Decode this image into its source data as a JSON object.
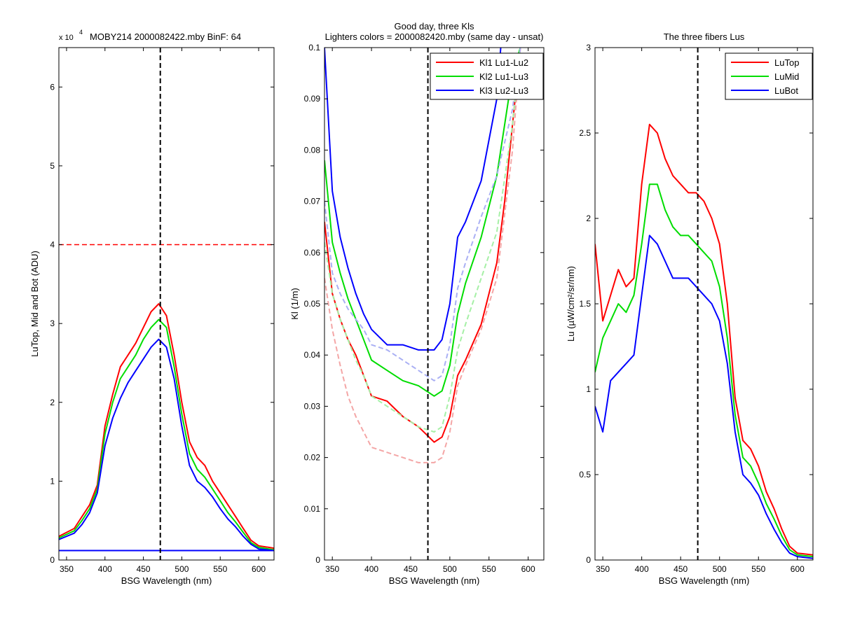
{
  "figure": {
    "background": "#ffffff"
  },
  "chart_data": [
    {
      "type": "line",
      "title": "MOBY214  2000082422.mby BinF: 64",
      "y_exponent_label": "x 10",
      "y_exponent_power": "4",
      "xlabel": "BSG Wavelength (nm)",
      "ylabel": "LuTop, Mid and Bot (ADU)",
      "xlim": [
        340,
        620
      ],
      "ylim": [
        0,
        6.5
      ],
      "xticks": [
        350,
        400,
        450,
        500,
        550,
        600
      ],
      "yticks": [
        0,
        1,
        2,
        3,
        4,
        5,
        6
      ],
      "xtick_labels": [
        "350",
        "400",
        "450",
        "500",
        "550",
        "600"
      ],
      "ytick_labels": [
        "0",
        "1",
        "2",
        "3",
        "4",
        "5",
        "6"
      ],
      "vline": {
        "x": 472,
        "color": "#000000",
        "style": "dashed"
      },
      "hline": {
        "y": 4.0,
        "color": "#ff0000",
        "style": "dashed"
      },
      "series": [
        {
          "color": "#ff0000",
          "x": [
            340,
            360,
            370,
            380,
            390,
            400,
            410,
            420,
            430,
            440,
            450,
            460,
            470,
            480,
            490,
            500,
            510,
            520,
            530,
            540,
            550,
            560,
            570,
            580,
            590,
            600,
            620
          ],
          "y": [
            0.3,
            0.4,
            0.55,
            0.7,
            0.95,
            1.7,
            2.1,
            2.45,
            2.6,
            2.75,
            2.95,
            3.15,
            3.25,
            3.1,
            2.6,
            2.0,
            1.5,
            1.3,
            1.2,
            1.0,
            0.85,
            0.7,
            0.55,
            0.4,
            0.25,
            0.18,
            0.15
          ]
        },
        {
          "color": "#00dd00",
          "x": [
            340,
            360,
            370,
            380,
            390,
            400,
            410,
            420,
            430,
            440,
            450,
            460,
            470,
            480,
            490,
            500,
            510,
            520,
            530,
            540,
            550,
            560,
            570,
            580,
            590,
            600,
            620
          ],
          "y": [
            0.28,
            0.37,
            0.5,
            0.65,
            0.9,
            1.6,
            2.0,
            2.3,
            2.45,
            2.6,
            2.8,
            2.95,
            3.05,
            2.95,
            2.45,
            1.85,
            1.35,
            1.15,
            1.05,
            0.9,
            0.75,
            0.6,
            0.48,
            0.35,
            0.22,
            0.16,
            0.13
          ]
        },
        {
          "color": "#0000ff",
          "x": [
            340,
            360,
            370,
            380,
            390,
            400,
            410,
            420,
            430,
            440,
            450,
            460,
            470,
            480,
            490,
            500,
            510,
            520,
            530,
            540,
            550,
            560,
            570,
            580,
            590,
            600,
            620
          ],
          "y": [
            0.26,
            0.34,
            0.45,
            0.6,
            0.85,
            1.45,
            1.8,
            2.05,
            2.25,
            2.4,
            2.55,
            2.7,
            2.8,
            2.7,
            2.3,
            1.7,
            1.2,
            1.0,
            0.92,
            0.8,
            0.65,
            0.52,
            0.42,
            0.3,
            0.2,
            0.14,
            0.12
          ]
        },
        {
          "color": "#0000ff",
          "x": [
            340,
            620
          ],
          "y": [
            0.12,
            0.12
          ]
        }
      ]
    },
    {
      "type": "line",
      "title": "Good day, three Kls",
      "subtitle": "Lighters colors = 2000082420.mby (same day - unsat)",
      "xlabel": "BSG Wavelength (nm)",
      "ylabel": "Kl (1/m)",
      "xlim": [
        340,
        620
      ],
      "ylim": [
        0,
        0.1
      ],
      "xticks": [
        350,
        400,
        450,
        500,
        550,
        600
      ],
      "yticks": [
        0,
        0.01,
        0.02,
        0.03,
        0.04,
        0.05,
        0.06,
        0.07,
        0.08,
        0.09,
        0.1
      ],
      "xtick_labels": [
        "350",
        "400",
        "450",
        "500",
        "550",
        "600"
      ],
      "ytick_labels": [
        "0",
        "0.01",
        "0.02",
        "0.03",
        "0.04",
        "0.05",
        "0.06",
        "0.07",
        "0.08",
        "0.09",
        "0.1"
      ],
      "vline": {
        "x": 472,
        "color": "#000000",
        "style": "dashed"
      },
      "legend_position": "top-right",
      "series": [
        {
          "name": "Kl1 Lu1-Lu2",
          "color": "#ff0000",
          "x": [
            340,
            350,
            360,
            370,
            380,
            390,
            400,
            420,
            440,
            460,
            480,
            490,
            500,
            510,
            520,
            540,
            560,
            570,
            580,
            590
          ],
          "y": [
            0.066,
            0.052,
            0.047,
            0.043,
            0.04,
            0.036,
            0.032,
            0.031,
            0.028,
            0.026,
            0.023,
            0.024,
            0.028,
            0.036,
            0.039,
            0.046,
            0.058,
            0.07,
            0.085,
            0.1
          ]
        },
        {
          "name": "Kl2 Lu1-Lu3",
          "color": "#00dd00",
          "x": [
            340,
            350,
            360,
            370,
            380,
            390,
            400,
            420,
            440,
            460,
            480,
            490,
            500,
            510,
            520,
            540,
            560,
            570,
            580,
            590
          ],
          "y": [
            0.078,
            0.062,
            0.056,
            0.051,
            0.047,
            0.043,
            0.039,
            0.037,
            0.035,
            0.034,
            0.032,
            0.033,
            0.038,
            0.048,
            0.054,
            0.063,
            0.075,
            0.085,
            0.095,
            0.1
          ]
        },
        {
          "name": "Kl3 Lu2-Lu3",
          "color": "#0000ff",
          "x": [
            340,
            350,
            360,
            370,
            380,
            390,
            400,
            420,
            440,
            460,
            480,
            490,
            500,
            510,
            520,
            540,
            560,
            565
          ],
          "y": [
            0.1,
            0.072,
            0.063,
            0.057,
            0.052,
            0.048,
            0.045,
            0.042,
            0.042,
            0.041,
            0.041,
            0.043,
            0.05,
            0.063,
            0.066,
            0.074,
            0.09,
            0.1
          ]
        },
        {
          "color": "#f4a6a6",
          "style": "dashed",
          "x": [
            340,
            350,
            360,
            370,
            380,
            390,
            400,
            420,
            440,
            460,
            480,
            490,
            500,
            510,
            520,
            540,
            560,
            580,
            590
          ],
          "y": [
            0.055,
            0.045,
            0.038,
            0.032,
            0.028,
            0.025,
            0.022,
            0.021,
            0.02,
            0.019,
            0.019,
            0.02,
            0.025,
            0.034,
            0.038,
            0.045,
            0.055,
            0.08,
            0.1
          ]
        },
        {
          "color": "#a6f0a6",
          "style": "dashed",
          "x": [
            340,
            350,
            360,
            370,
            380,
            390,
            400,
            420,
            440,
            460,
            480,
            490,
            500,
            510,
            520,
            540,
            560,
            580,
            590
          ],
          "y": [
            0.062,
            0.052,
            0.047,
            0.043,
            0.039,
            0.036,
            0.032,
            0.03,
            0.028,
            0.026,
            0.025,
            0.026,
            0.032,
            0.041,
            0.046,
            0.055,
            0.064,
            0.085,
            0.1
          ]
        },
        {
          "color": "#aab0f4",
          "style": "dashed",
          "x": [
            340,
            350,
            360,
            370,
            380,
            390,
            400,
            420,
            440,
            460,
            480,
            490,
            500,
            510,
            520,
            540,
            560,
            580,
            590
          ],
          "y": [
            0.07,
            0.056,
            0.052,
            0.049,
            0.047,
            0.045,
            0.042,
            0.041,
            0.039,
            0.037,
            0.035,
            0.036,
            0.042,
            0.053,
            0.058,
            0.067,
            0.075,
            0.088,
            0.1
          ]
        }
      ]
    },
    {
      "type": "line",
      "title": "The three fibers Lus",
      "xlabel": "BSG Wavelength (nm)",
      "ylabel": "Lu (µW/cm²/sr/nm)",
      "xlim": [
        340,
        620
      ],
      "ylim": [
        0,
        3
      ],
      "xticks": [
        350,
        400,
        450,
        500,
        550,
        600
      ],
      "yticks": [
        0,
        0.5,
        1,
        1.5,
        2,
        2.5,
        3
      ],
      "xtick_labels": [
        "350",
        "400",
        "450",
        "500",
        "550",
        "600"
      ],
      "ytick_labels": [
        "0",
        "0.5",
        "1",
        "1.5",
        "2",
        "2.5",
        "3"
      ],
      "vline": {
        "x": 472,
        "color": "#000000",
        "style": "dashed"
      },
      "legend_position": "top-right",
      "series": [
        {
          "name": "LuTop",
          "color": "#ff0000",
          "x": [
            340,
            350,
            360,
            370,
            380,
            390,
            400,
            410,
            420,
            430,
            440,
            450,
            460,
            470,
            480,
            490,
            500,
            510,
            520,
            530,
            540,
            550,
            560,
            570,
            580,
            590,
            600,
            620
          ],
          "y": [
            1.85,
            1.4,
            1.55,
            1.7,
            1.6,
            1.65,
            2.2,
            2.55,
            2.5,
            2.35,
            2.25,
            2.2,
            2.15,
            2.15,
            2.1,
            2.0,
            1.85,
            1.5,
            0.95,
            0.7,
            0.65,
            0.55,
            0.4,
            0.3,
            0.18,
            0.08,
            0.04,
            0.03
          ]
        },
        {
          "name": "LuMid",
          "color": "#00dd00",
          "x": [
            340,
            350,
            360,
            370,
            380,
            390,
            400,
            410,
            420,
            430,
            440,
            450,
            460,
            470,
            480,
            490,
            500,
            510,
            520,
            530,
            540,
            550,
            560,
            570,
            580,
            590,
            600,
            620
          ],
          "y": [
            1.1,
            1.3,
            1.4,
            1.5,
            1.45,
            1.55,
            1.85,
            2.2,
            2.2,
            2.05,
            1.95,
            1.9,
            1.9,
            1.85,
            1.8,
            1.75,
            1.6,
            1.3,
            0.85,
            0.6,
            0.55,
            0.45,
            0.33,
            0.24,
            0.14,
            0.06,
            0.03,
            0.02
          ]
        },
        {
          "name": "LuBot",
          "color": "#0000ff",
          "x": [
            340,
            350,
            360,
            370,
            380,
            390,
            400,
            410,
            420,
            430,
            440,
            450,
            460,
            470,
            480,
            490,
            500,
            510,
            520,
            530,
            540,
            550,
            560,
            570,
            580,
            590,
            600,
            620
          ],
          "y": [
            0.9,
            0.75,
            1.05,
            1.1,
            1.15,
            1.2,
            1.55,
            1.9,
            1.85,
            1.75,
            1.65,
            1.65,
            1.65,
            1.6,
            1.55,
            1.5,
            1.4,
            1.15,
            0.75,
            0.5,
            0.45,
            0.38,
            0.27,
            0.18,
            0.1,
            0.04,
            0.02,
            0.01
          ]
        }
      ]
    }
  ]
}
